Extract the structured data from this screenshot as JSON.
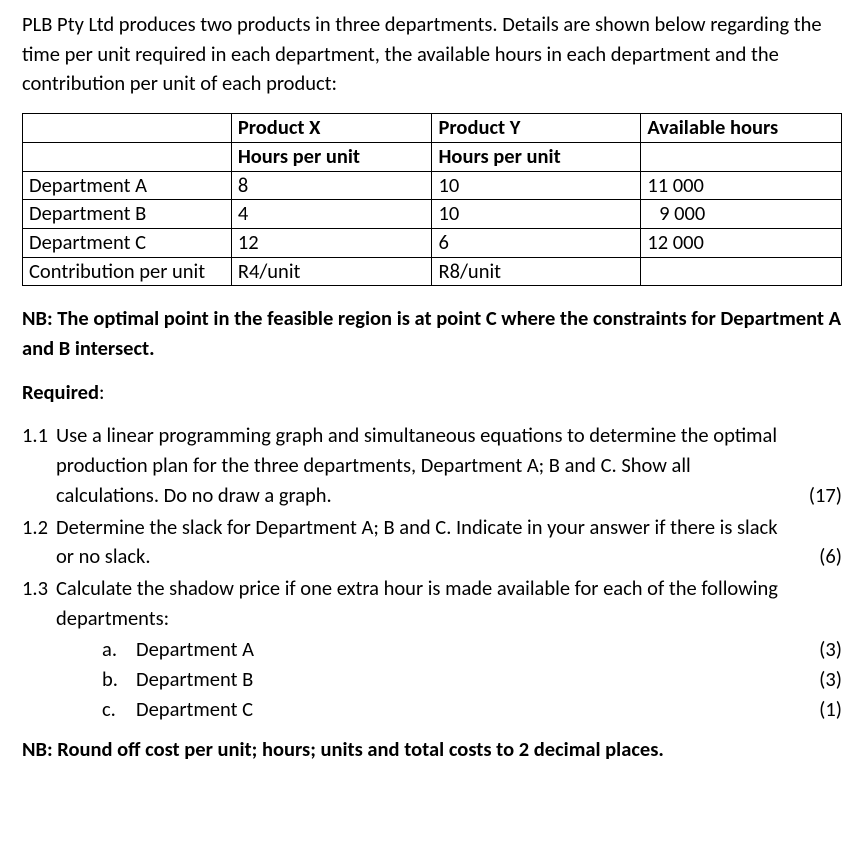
{
  "intro": "PLB Pty Ltd produces two products in three departments. Details are shown below regarding the time per unit required in each department, the available hours in each department and the contribution per unit of each product:",
  "table": {
    "head": {
      "px": "Product X",
      "py": "Product Y",
      "avail": "Available hours",
      "hpux": "Hours per unit",
      "hpuy": "Hours per unit"
    },
    "rows": {
      "a": {
        "dept": "Department A",
        "x": "8",
        "y": "10",
        "av": "11 000"
      },
      "b": {
        "dept": "Department B",
        "x": "4",
        "y": "10",
        "av": "9 000"
      },
      "c": {
        "dept": "Department C",
        "x": "12",
        "y": "6",
        "av": "12 000"
      },
      "cpu": {
        "label": "Contribution per unit",
        "x": "R4/unit",
        "y": "R8/unit",
        "av": ""
      }
    }
  },
  "nb1": "NB: The optimal point in the feasible region is at point C where the constraints for Department A and B intersect.",
  "required_label": "Required",
  "q11": {
    "num": "1.1",
    "line1": "Use a linear programming graph and simultaneous equations to determine the optimal",
    "line2": "production plan for the three departments, Department A; B and C. Show all",
    "line3": "calculations. Do no draw a graph.",
    "marks": "(17)"
  },
  "q12": {
    "num": "1.2",
    "line1": "Determine the slack for Department A; B and C. Indicate in your answer if there is slack",
    "line2": "or no slack.",
    "marks": "(6)"
  },
  "q13": {
    "num": "1.3",
    "line1": "Calculate the shadow price if one extra hour is made available for each of the following",
    "line2": "departments:",
    "a": {
      "let": "a.",
      "txt": "Department A",
      "marks": "(3)"
    },
    "b": {
      "let": "b.",
      "txt": "Department B",
      "marks": "(3)"
    },
    "c": {
      "let": "c.",
      "txt": "Department C",
      "marks": "(1)"
    }
  },
  "nb2": "NB: Round off cost per unit; hours; units and total costs to 2 decimal places."
}
